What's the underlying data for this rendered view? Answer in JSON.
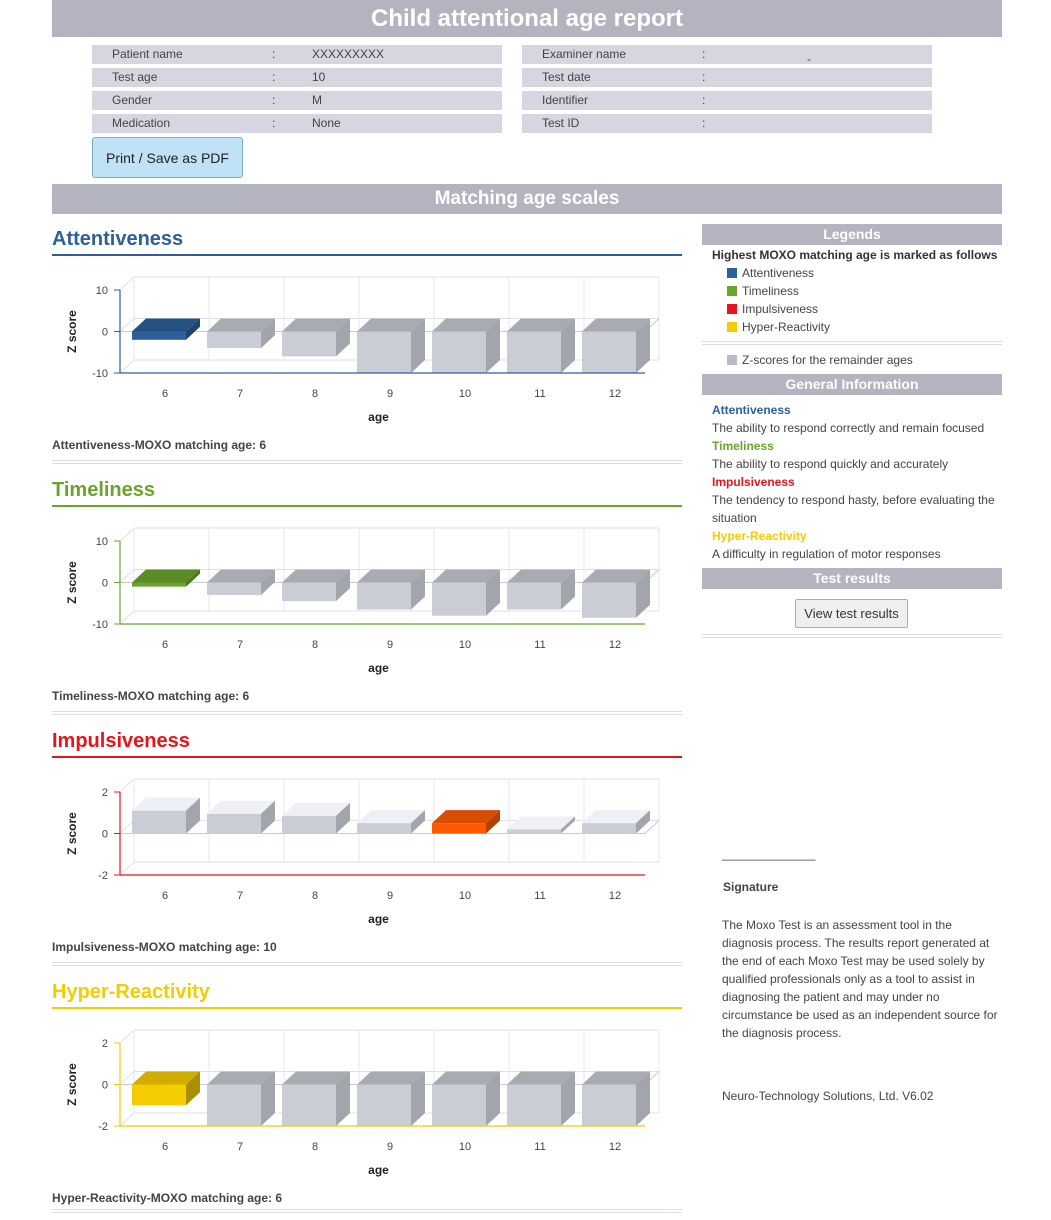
{
  "header": {
    "title": "Child attentional age report"
  },
  "patient": {
    "left": [
      {
        "label": "Patient name",
        "value": "XXXXXXXXX"
      },
      {
        "label": "Test age",
        "value": "10"
      },
      {
        "label": "Gender",
        "value": "M"
      },
      {
        "label": "Medication",
        "value": "None"
      }
    ],
    "right": [
      {
        "label": "Examiner name",
        "value": "-"
      },
      {
        "label": "Test date",
        "value": ""
      },
      {
        "label": "Identifier",
        "value": ""
      },
      {
        "label": "Test ID",
        "value": ""
      }
    ],
    "colon": ":"
  },
  "actions": {
    "print_label": "Print / Save as PDF",
    "view_results_label": "View test results"
  },
  "scales": {
    "title": "Matching age scales"
  },
  "colors": {
    "attentiveness": "#2d5f9a",
    "timeliness": "#6ba42c",
    "impulsiveness": "#e8141c",
    "hyper": "#f5cc00",
    "highlight_impulsive_bar": "#ff5a00",
    "remainder": "#b8bcc9"
  },
  "chart_data": [
    {
      "type": "bar",
      "title": "Attentiveness",
      "xlabel": "age",
      "ylabel": "Z score",
      "categories": [
        "6",
        "7",
        "8",
        "9",
        "10",
        "11",
        "12"
      ],
      "values": [
        -2,
        -4,
        -6,
        -10,
        -10,
        -10,
        -10
      ],
      "ylim": [
        -10,
        10
      ],
      "yticks": [
        10,
        0,
        -10
      ],
      "highlight_index": 0,
      "grid": true,
      "match_text": "Attentiveness-MOXO matching age: 6"
    },
    {
      "type": "bar",
      "title": "Timeliness",
      "xlabel": "age",
      "ylabel": "Z score",
      "categories": [
        "6",
        "7",
        "8",
        "9",
        "10",
        "11",
        "12"
      ],
      "values": [
        -1,
        -3,
        -4.5,
        -6.5,
        -8,
        -6.5,
        -8.5
      ],
      "ylim": [
        -10,
        10
      ],
      "yticks": [
        10,
        0,
        -10
      ],
      "highlight_index": 0,
      "grid": true,
      "match_text": "Timeliness-MOXO matching age: 6"
    },
    {
      "type": "bar",
      "title": "Impulsiveness",
      "xlabel": "age",
      "ylabel": "Z score",
      "categories": [
        "6",
        "7",
        "8",
        "9",
        "10",
        "11",
        "12"
      ],
      "values": [
        1.1,
        0.95,
        0.85,
        0.5,
        0.5,
        0.2,
        0.5
      ],
      "ylim": [
        -2,
        2
      ],
      "yticks": [
        2,
        0,
        -2
      ],
      "highlight_index": 4,
      "grid": true,
      "match_text": "Impulsiveness-MOXO matching age: 10"
    },
    {
      "type": "bar",
      "title": "Hyper-Reactivity",
      "xlabel": "age",
      "ylabel": "Z score",
      "categories": [
        "6",
        "7",
        "8",
        "9",
        "10",
        "11",
        "12"
      ],
      "values": [
        -1,
        -2,
        -2,
        -2,
        -2,
        -2,
        -2
      ],
      "ylim": [
        -2,
        2
      ],
      "yticks": [
        2,
        0,
        -2
      ],
      "highlight_index": 0,
      "grid": true,
      "match_text": "Hyper-Reactivity-MOXO matching age: 6"
    }
  ],
  "sidebar": {
    "legends_title": "Legends",
    "legends_intro": "Highest MOXO matching age is marked as follows",
    "legend_items": [
      "Attentiveness",
      "Timeliness",
      "Impulsiveness",
      "Hyper-Reactivity"
    ],
    "remainder_label": "Z-scores for the remainder ages",
    "general_title": "General Information",
    "general": [
      {
        "term": "Attentiveness",
        "desc": "The ability to respond correctly and remain focused"
      },
      {
        "term": "Timeliness",
        "desc": "The ability to respond quickly and accurately"
      },
      {
        "term": "Impulsiveness",
        "desc": "The tendency to respond hasty, before evaluating the situation"
      },
      {
        "term": "Hyper-Reactivity",
        "desc": "A difficulty in regulation of motor responses"
      }
    ],
    "results_title": "Test results"
  },
  "footer": {
    "signature_line": "______________",
    "signature_label": "Signature",
    "disclaimer": "The Moxo Test is an assessment tool in the diagnosis process. The results report generated at the end of each Moxo Test may be used solely by qualified professionals only as a tool to assist in diagnosing the patient and may under no circumstance be used as an independent source for the diagnosis process.",
    "company": "Neuro-Technology Solutions, Ltd. V6.02"
  }
}
